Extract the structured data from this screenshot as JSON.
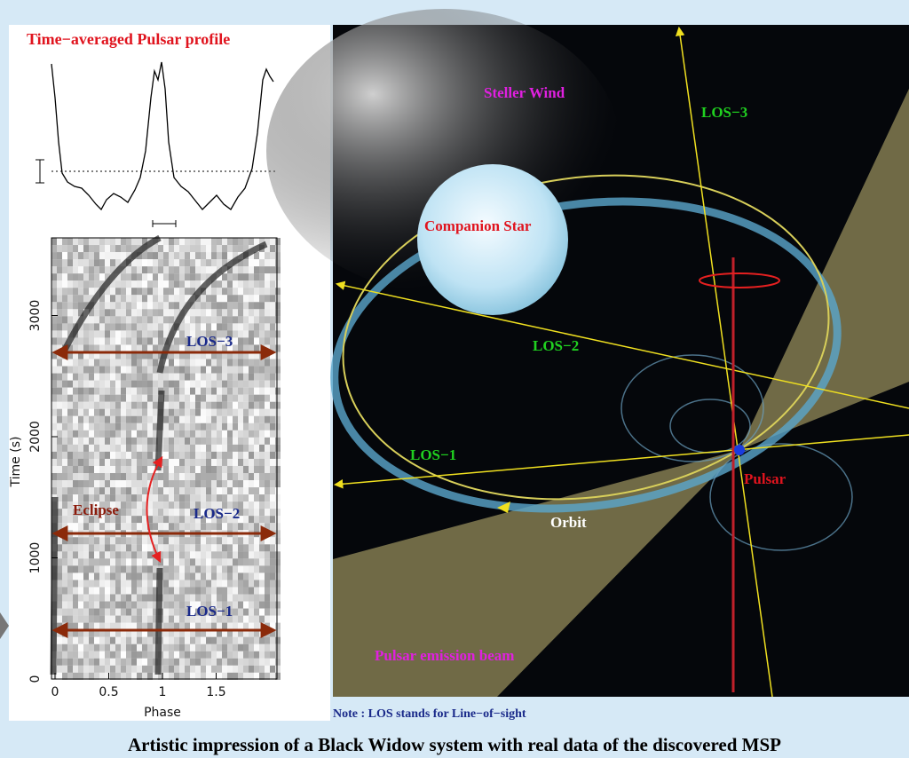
{
  "left_panel": {
    "title": "Time−averaged Pulsar profile",
    "x_axis": {
      "label": "Phase",
      "ticks": [
        0,
        0.5,
        1,
        1.5
      ]
    },
    "y_axis": {
      "label": "Time (s)",
      "ticks": [
        0,
        1000,
        2000,
        3000
      ]
    },
    "annotations": [
      "LOS−3",
      "LOS−2",
      "LOS−1",
      "Eclipse"
    ]
  },
  "right_panel": {
    "labels": [
      "Steller Wind",
      "LOS−3",
      "Companion Star",
      "LOS−2",
      "LOS−1",
      "Pulsar",
      "Orbit",
      "Pulsar emission beam"
    ]
  },
  "note": "Note : LOS stands for Line−of−sight",
  "caption": "Artistic impression of a Black Widow system with real data of the discovered MSP"
}
